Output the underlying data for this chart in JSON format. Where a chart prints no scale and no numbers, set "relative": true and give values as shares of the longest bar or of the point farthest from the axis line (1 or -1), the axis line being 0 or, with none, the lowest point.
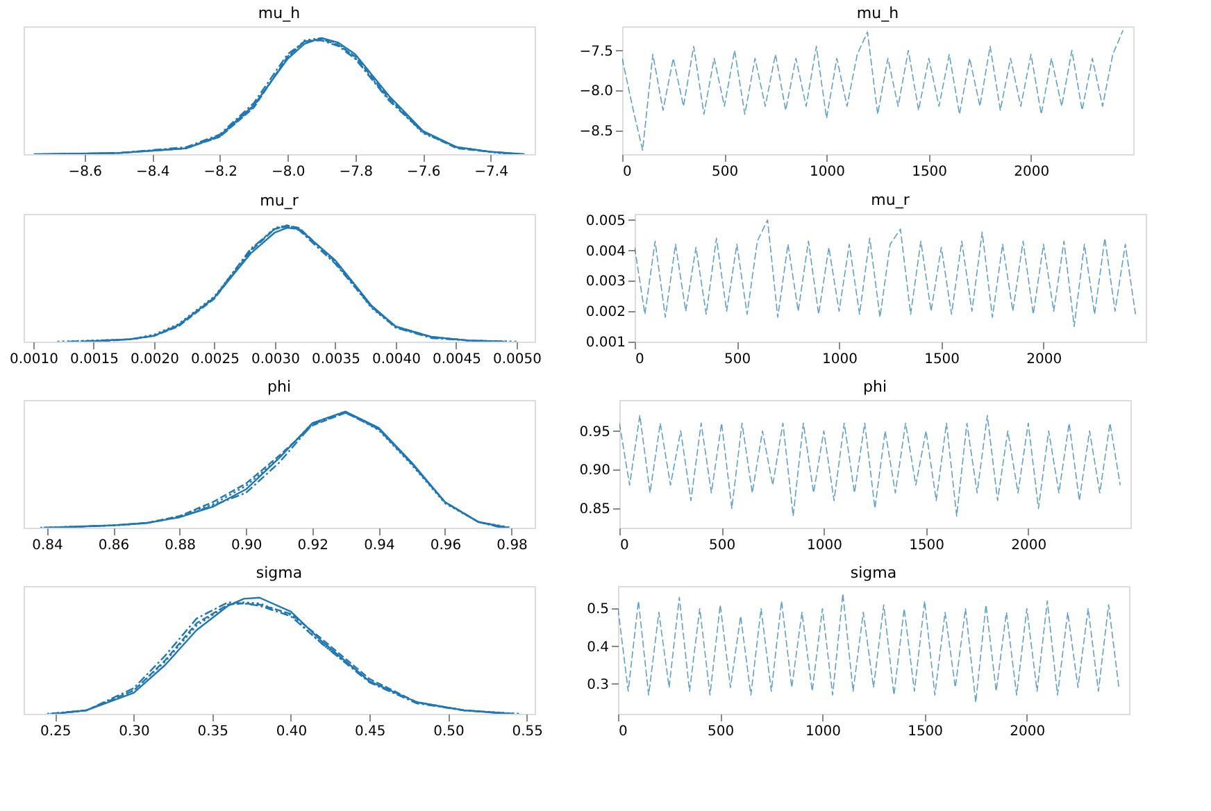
{
  "chart_data": [
    {
      "type": "line",
      "title": "mu_h",
      "relative": true,
      "tick_labels": "x",
      "xlim": [
        -8.78,
        -7.27
      ],
      "xticks": [
        {
          "value": -8.6,
          "label": "−8.6"
        },
        {
          "value": -8.4,
          "label": "−8.4"
        },
        {
          "value": -8.2,
          "label": "−8.2"
        },
        {
          "value": -8.0,
          "label": "−8.0"
        },
        {
          "value": -7.8,
          "label": "−7.8"
        },
        {
          "value": -7.6,
          "label": "−7.6"
        },
        {
          "value": -7.4,
          "label": "−7.4"
        }
      ],
      "x": [
        -8.75,
        -8.5,
        -8.3,
        -8.2,
        -8.1,
        -8.0,
        -7.95,
        -7.9,
        -7.85,
        -7.8,
        -7.7,
        -7.6,
        -7.5,
        -7.4,
        -7.3
      ],
      "series": [
        {
          "color": "#1f77b4",
          "line_style": "solid",
          "values": [
            0,
            0.01,
            0.05,
            0.16,
            0.42,
            0.82,
            0.95,
            1.0,
            0.96,
            0.86,
            0.5,
            0.2,
            0.06,
            0.02,
            0
          ]
        },
        {
          "color": "#1f77b4",
          "line_style": "dashed",
          "x": [
            -8.7,
            -8.5,
            -8.3,
            -8.2,
            -8.1,
            -8.0,
            -7.95,
            -7.9,
            -7.85,
            -7.8,
            -7.7,
            -7.6,
            -7.5,
            -7.4,
            -7.32
          ],
          "values": [
            0,
            0.01,
            0.05,
            0.15,
            0.4,
            0.84,
            0.97,
            0.99,
            0.94,
            0.84,
            0.48,
            0.19,
            0.05,
            0.02,
            0
          ]
        },
        {
          "color": "#1f77b4",
          "line_style": "dotted",
          "x": [
            -8.72,
            -8.5,
            -8.3,
            -8.2,
            -8.1,
            -8.0,
            -7.95,
            -7.9,
            -7.85,
            -7.8,
            -7.7,
            -7.6,
            -7.5,
            -7.4,
            -7.35
          ],
          "values": [
            0,
            0.01,
            0.05,
            0.15,
            0.41,
            0.83,
            0.98,
            1.0,
            0.95,
            0.83,
            0.47,
            0.18,
            0.06,
            0.02,
            0
          ]
        },
        {
          "color": "#1f77b4",
          "line_style": "dashdot",
          "x": [
            -8.68,
            -8.5,
            -8.3,
            -8.2,
            -8.1,
            -8.0,
            -7.95,
            -7.9,
            -7.85,
            -7.8,
            -7.7,
            -7.6,
            -7.5,
            -7.4,
            -7.31
          ],
          "values": [
            0,
            0.01,
            0.06,
            0.17,
            0.44,
            0.86,
            0.97,
            0.98,
            0.93,
            0.82,
            0.46,
            0.19,
            0.06,
            0.02,
            0
          ]
        }
      ]
    },
    {
      "type": "line",
      "title": "mu_h",
      "xlim": [
        0,
        2500
      ],
      "xticks": [
        0,
        500,
        1000,
        1500,
        2000
      ],
      "ylim": [
        -8.8,
        -7.2
      ],
      "yticks": [
        {
          "value": -8.5,
          "label": "−8.5"
        },
        {
          "value": -8.0,
          "label": "−8.0"
        },
        {
          "value": -7.5,
          "label": "−7.5"
        }
      ],
      "x": [
        0,
        50,
        100,
        150,
        200,
        250,
        300,
        350,
        400,
        450,
        500,
        550,
        600,
        650,
        700,
        750,
        800,
        850,
        900,
        950,
        1000,
        1050,
        1100,
        1150,
        1200,
        1250,
        1300,
        1350,
        1400,
        1450,
        1500,
        1550,
        1600,
        1650,
        1700,
        1750,
        1800,
        1850,
        1900,
        1950,
        2000,
        2050,
        2100,
        2150,
        2200,
        2250,
        2300,
        2350,
        2400,
        2450
      ],
      "series": [
        {
          "color": "#1f77b4",
          "line_style": "dashed",
          "values": [
            -7.6,
            -8.2,
            -8.75,
            -7.55,
            -8.25,
            -7.6,
            -8.2,
            -7.45,
            -8.3,
            -7.6,
            -8.2,
            -7.5,
            -8.3,
            -7.6,
            -8.2,
            -7.55,
            -8.25,
            -7.6,
            -8.2,
            -7.45,
            -8.35,
            -7.6,
            -8.2,
            -7.55,
            -7.27,
            -8.3,
            -7.6,
            -8.2,
            -7.5,
            -8.25,
            -7.6,
            -8.2,
            -7.55,
            -8.3,
            -7.6,
            -8.2,
            -7.45,
            -8.25,
            -7.6,
            -8.2,
            -7.55,
            -8.3,
            -7.6,
            -8.2,
            -7.5,
            -8.25,
            -7.6,
            -8.2,
            -7.55,
            -7.25
          ]
        }
      ]
    },
    {
      "type": "line",
      "title": "mu_r",
      "relative": true,
      "tick_labels": "x",
      "xlim": [
        0.00092,
        0.00515
      ],
      "xticks": [
        {
          "value": 0.001,
          "label": "0.0010"
        },
        {
          "value": 0.0015,
          "label": "0.0015"
        },
        {
          "value": 0.002,
          "label": "0.0020"
        },
        {
          "value": 0.0025,
          "label": "0.0025"
        },
        {
          "value": 0.003,
          "label": "0.0030"
        },
        {
          "value": 0.0035,
          "label": "0.0035"
        },
        {
          "value": 0.004,
          "label": "0.0040"
        },
        {
          "value": 0.0045,
          "label": "0.0045"
        },
        {
          "value": 0.005,
          "label": "0.0050"
        }
      ],
      "x": [
        0.0012,
        0.0018,
        0.002,
        0.0022,
        0.0025,
        0.0028,
        0.003,
        0.0031,
        0.0032,
        0.0035,
        0.0038,
        0.004,
        0.0043,
        0.0046,
        0.005
      ],
      "series": [
        {
          "color": "#1f77b4",
          "line_style": "solid",
          "x": [
            0.0014,
            0.0018,
            0.002,
            0.0022,
            0.0025,
            0.0028,
            0.003,
            0.0031,
            0.0032,
            0.0035,
            0.0038,
            0.004,
            0.0043,
            0.0046,
            0.0049
          ],
          "values": [
            0,
            0.02,
            0.05,
            0.14,
            0.38,
            0.76,
            0.94,
            0.98,
            0.97,
            0.7,
            0.31,
            0.13,
            0.04,
            0.01,
            0
          ]
        },
        {
          "color": "#1f77b4",
          "line_style": "dashed",
          "x": [
            0.0015,
            0.0018,
            0.002,
            0.0022,
            0.0025,
            0.0028,
            0.003,
            0.0031,
            0.0032,
            0.0035,
            0.0038,
            0.004,
            0.0043,
            0.0046,
            0.0048
          ],
          "values": [
            0,
            0.02,
            0.05,
            0.13,
            0.37,
            0.78,
            0.97,
            1.0,
            0.98,
            0.69,
            0.3,
            0.13,
            0.04,
            0.01,
            0
          ]
        },
        {
          "color": "#1f77b4",
          "line_style": "dotted",
          "values": [
            0,
            0.02,
            0.06,
            0.15,
            0.39,
            0.79,
            0.98,
            1.0,
            0.97,
            0.68,
            0.29,
            0.12,
            0.04,
            0.01,
            0
          ]
        },
        {
          "color": "#1f77b4",
          "line_style": "dashdot",
          "x": [
            0.0013,
            0.0018,
            0.002,
            0.0022,
            0.0025,
            0.0028,
            0.003,
            0.0031,
            0.0032,
            0.0035,
            0.0038,
            0.004,
            0.0043,
            0.0046,
            0.00495
          ],
          "values": [
            0,
            0.02,
            0.05,
            0.14,
            0.38,
            0.8,
            0.97,
            0.99,
            0.96,
            0.67,
            0.3,
            0.12,
            0.03,
            0.01,
            0
          ]
        }
      ]
    },
    {
      "type": "line",
      "title": "mu_r",
      "xlim": [
        0,
        2500
      ],
      "xticks": [
        0,
        500,
        1000,
        1500,
        2000
      ],
      "ylim": [
        0.001,
        0.0052
      ],
      "yticks": [
        0.001,
        0.002,
        0.003,
        0.004,
        0.005
      ],
      "x": [
        0,
        50,
        100,
        150,
        200,
        250,
        300,
        350,
        400,
        450,
        500,
        550,
        600,
        650,
        700,
        750,
        800,
        850,
        900,
        950,
        1000,
        1050,
        1100,
        1150,
        1200,
        1250,
        1300,
        1350,
        1400,
        1450,
        1500,
        1550,
        1600,
        1650,
        1700,
        1750,
        1800,
        1850,
        1900,
        1950,
        2000,
        2050,
        2100,
        2150,
        2200,
        2250,
        2300,
        2350,
        2400,
        2450
      ],
      "series": [
        {
          "color": "#1f77b4",
          "line_style": "dashed",
          "values": [
            0.0041,
            0.0019,
            0.0043,
            0.0018,
            0.0042,
            0.002,
            0.0041,
            0.0019,
            0.0044,
            0.002,
            0.0042,
            0.0019,
            0.0043,
            0.005,
            0.0018,
            0.0042,
            0.002,
            0.0043,
            0.0019,
            0.0041,
            0.002,
            0.0042,
            0.0019,
            0.0044,
            0.0018,
            0.0042,
            0.0047,
            0.0019,
            0.0043,
            0.002,
            0.0041,
            0.0019,
            0.0043,
            0.002,
            0.0046,
            0.0018,
            0.0042,
            0.002,
            0.0043,
            0.0019,
            0.0042,
            0.002,
            0.0043,
            0.0015,
            0.0042,
            0.0019,
            0.0044,
            0.002,
            0.0042,
            0.0019
          ]
        }
      ]
    },
    {
      "type": "line",
      "title": "phi",
      "relative": true,
      "tick_labels": "x",
      "xlim": [
        0.833,
        0.987
      ],
      "xticks": [
        0.84,
        0.86,
        0.88,
        {
          "value": 0.9,
          "label": "0.90"
        },
        0.92,
        0.94,
        0.96,
        0.98
      ],
      "x": [
        0.838,
        0.86,
        0.87,
        0.88,
        0.89,
        0.9,
        0.91,
        0.92,
        0.93,
        0.94,
        0.95,
        0.96,
        0.97,
        0.98
      ],
      "series": [
        {
          "color": "#1f77b4",
          "line_style": "solid",
          "x": [
            0.84,
            0.86,
            0.87,
            0.88,
            0.89,
            0.9,
            0.91,
            0.92,
            0.93,
            0.94,
            0.95,
            0.96,
            0.97,
            0.979
          ],
          "values": [
            0,
            0.02,
            0.04,
            0.09,
            0.18,
            0.33,
            0.6,
            0.9,
            1.0,
            0.86,
            0.56,
            0.22,
            0.05,
            0
          ]
        },
        {
          "color": "#1f77b4",
          "line_style": "dashed",
          "x": [
            0.841,
            0.86,
            0.87,
            0.88,
            0.89,
            0.9,
            0.91,
            0.92,
            0.93,
            0.94,
            0.95,
            0.96,
            0.97,
            0.978
          ],
          "values": [
            0,
            0.02,
            0.04,
            0.1,
            0.22,
            0.38,
            0.62,
            0.88,
            0.99,
            0.85,
            0.55,
            0.22,
            0.05,
            0
          ]
        },
        {
          "color": "#1f77b4",
          "line_style": "dotted",
          "values": [
            0,
            0.02,
            0.04,
            0.1,
            0.2,
            0.36,
            0.6,
            0.9,
            1.0,
            0.84,
            0.54,
            0.21,
            0.05,
            0
          ]
        },
        {
          "color": "#1f77b4",
          "line_style": "dashdot",
          "x": [
            0.839,
            0.86,
            0.87,
            0.88,
            0.89,
            0.9,
            0.91,
            0.92,
            0.93,
            0.94,
            0.95,
            0.96,
            0.97,
            0.977
          ],
          "values": [
            0,
            0.02,
            0.04,
            0.09,
            0.19,
            0.3,
            0.56,
            0.89,
            0.99,
            0.85,
            0.55,
            0.22,
            0.05,
            0
          ]
        }
      ]
    },
    {
      "type": "line",
      "title": "phi",
      "xlim": [
        0,
        2500
      ],
      "xticks": [
        0,
        500,
        1000,
        1500,
        2000
      ],
      "ylim": [
        0.825,
        0.99
      ],
      "yticks": [
        0.85,
        {
          "value": 0.9,
          "label": "0.90"
        },
        0.95
      ],
      "x": [
        0,
        50,
        100,
        150,
        200,
        250,
        300,
        350,
        400,
        450,
        500,
        550,
        600,
        650,
        700,
        750,
        800,
        850,
        900,
        950,
        1000,
        1050,
        1100,
        1150,
        1200,
        1250,
        1300,
        1350,
        1400,
        1450,
        1500,
        1550,
        1600,
        1650,
        1700,
        1750,
        1800,
        1850,
        1900,
        1950,
        2000,
        2050,
        2100,
        2150,
        2200,
        2250,
        2300,
        2350,
        2400,
        2450
      ],
      "series": [
        {
          "color": "#1f77b4",
          "line_style": "dashed",
          "values": [
            0.96,
            0.88,
            0.97,
            0.87,
            0.96,
            0.88,
            0.95,
            0.86,
            0.96,
            0.87,
            0.96,
            0.85,
            0.96,
            0.87,
            0.95,
            0.88,
            0.96,
            0.84,
            0.96,
            0.87,
            0.95,
            0.86,
            0.96,
            0.87,
            0.96,
            0.85,
            0.95,
            0.87,
            0.96,
            0.88,
            0.95,
            0.86,
            0.96,
            0.84,
            0.96,
            0.87,
            0.97,
            0.86,
            0.95,
            0.87,
            0.96,
            0.85,
            0.95,
            0.87,
            0.96,
            0.86,
            0.95,
            0.87,
            0.96,
            0.88
          ]
        }
      ]
    },
    {
      "type": "line",
      "title": "sigma",
      "relative": true,
      "tick_labels": "x",
      "xlim": [
        0.23,
        0.555
      ],
      "xticks": [
        0.25,
        {
          "value": 0.3,
          "label": "0.30"
        },
        0.35,
        {
          "value": 0.4,
          "label": "0.40"
        },
        0.45,
        {
          "value": 0.5,
          "label": "0.50"
        },
        0.55
      ],
      "x": [
        0.245,
        0.27,
        0.3,
        0.32,
        0.34,
        0.36,
        0.37,
        0.38,
        0.4,
        0.42,
        0.45,
        0.48,
        0.51,
        0.545
      ],
      "series": [
        {
          "color": "#1f77b4",
          "line_style": "solid",
          "x": [
            0.25,
            0.27,
            0.3,
            0.32,
            0.34,
            0.36,
            0.37,
            0.38,
            0.4,
            0.42,
            0.45,
            0.48,
            0.51,
            0.54
          ],
          "values": [
            0,
            0.03,
            0.18,
            0.42,
            0.72,
            0.93,
            0.99,
            1.0,
            0.88,
            0.62,
            0.28,
            0.1,
            0.03,
            0
          ]
        },
        {
          "color": "#1f77b4",
          "line_style": "dashed",
          "x": [
            0.248,
            0.27,
            0.3,
            0.32,
            0.34,
            0.36,
            0.37,
            0.38,
            0.4,
            0.42,
            0.45,
            0.48,
            0.51,
            0.542
          ],
          "values": [
            0,
            0.03,
            0.2,
            0.46,
            0.78,
            0.94,
            0.95,
            0.94,
            0.86,
            0.64,
            0.3,
            0.1,
            0.03,
            0
          ]
        },
        {
          "color": "#1f77b4",
          "line_style": "dotted",
          "values": [
            0,
            0.03,
            0.2,
            0.45,
            0.76,
            0.94,
            0.96,
            0.95,
            0.85,
            0.6,
            0.28,
            0.1,
            0.03,
            0
          ]
        },
        {
          "color": "#1f77b4",
          "line_style": "dashdot",
          "x": [
            0.247,
            0.27,
            0.3,
            0.32,
            0.34,
            0.36,
            0.37,
            0.38,
            0.4,
            0.42,
            0.45,
            0.48,
            0.51,
            0.538
          ],
          "values": [
            0,
            0.03,
            0.22,
            0.5,
            0.82,
            0.96,
            0.95,
            0.93,
            0.84,
            0.6,
            0.27,
            0.09,
            0.03,
            0
          ]
        }
      ]
    },
    {
      "type": "line",
      "title": "sigma",
      "xlim": [
        0,
        2500
      ],
      "xticks": [
        0,
        500,
        1000,
        1500,
        2000
      ],
      "ylim": [
        0.22,
        0.56
      ],
      "yticks": [
        {
          "value": 0.3,
          "label": "0.3"
        },
        {
          "value": 0.4,
          "label": "0.4"
        },
        {
          "value": 0.5,
          "label": "0.5"
        }
      ],
      "x": [
        0,
        50,
        100,
        150,
        200,
        250,
        300,
        350,
        400,
        450,
        500,
        550,
        600,
        650,
        700,
        750,
        800,
        850,
        900,
        950,
        1000,
        1050,
        1100,
        1150,
        1200,
        1250,
        1300,
        1350,
        1400,
        1450,
        1500,
        1550,
        1600,
        1650,
        1700,
        1750,
        1800,
        1850,
        1900,
        1950,
        2000,
        2050,
        2100,
        2150,
        2200,
        2250,
        2300,
        2350,
        2400,
        2450
      ],
      "series": [
        {
          "color": "#1f77b4",
          "line_style": "dashed",
          "values": [
            0.5,
            0.28,
            0.52,
            0.27,
            0.49,
            0.29,
            0.53,
            0.28,
            0.5,
            0.27,
            0.51,
            0.29,
            0.48,
            0.27,
            0.5,
            0.28,
            0.52,
            0.29,
            0.49,
            0.28,
            0.5,
            0.27,
            0.54,
            0.28,
            0.49,
            0.29,
            0.51,
            0.27,
            0.5,
            0.28,
            0.52,
            0.27,
            0.49,
            0.29,
            0.5,
            0.25,
            0.51,
            0.28,
            0.49,
            0.27,
            0.5,
            0.28,
            0.52,
            0.27,
            0.49,
            0.29,
            0.5,
            0.28,
            0.51,
            0.29
          ]
        }
      ]
    }
  ]
}
